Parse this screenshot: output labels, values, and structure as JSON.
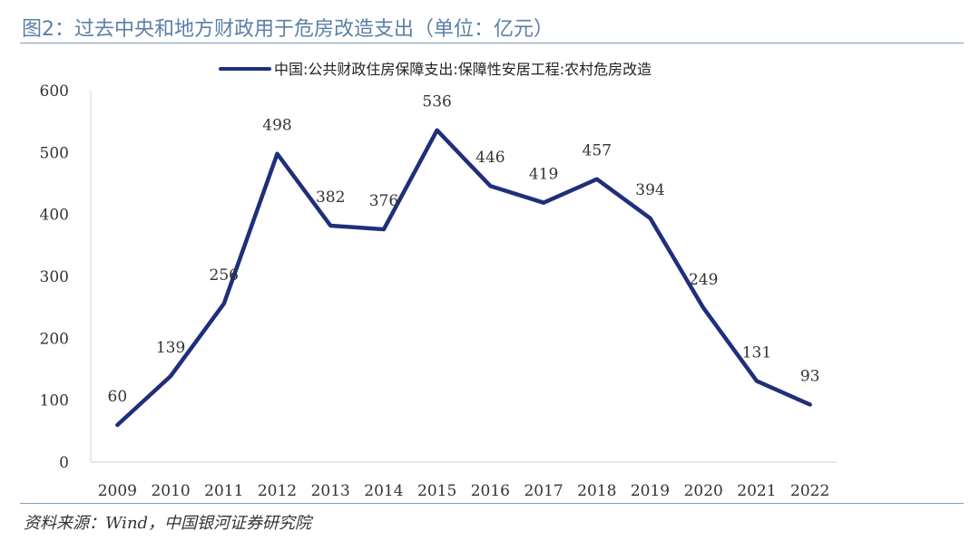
{
  "figure": {
    "title": "图2：过去中央和地方财政用于危房改造支出（单位：亿元）",
    "source": "资料来源：Wind，中国银河证券研究院"
  },
  "chart_data": {
    "type": "line",
    "title": "",
    "xlabel": "",
    "ylabel": "",
    "categories": [
      "2009",
      "2010",
      "2011",
      "2012",
      "2013",
      "2014",
      "2015",
      "2016",
      "2017",
      "2018",
      "2019",
      "2020",
      "2021",
      "2022"
    ],
    "series": [
      {
        "name": "中国:公共财政住房保障支出:保障性安居工程:农村危房改造",
        "values": [
          60,
          139,
          256,
          498,
          382,
          376,
          536,
          446,
          419,
          457,
          394,
          249,
          131,
          93
        ],
        "color": "#1f2f7a"
      }
    ],
    "ylim": [
      0,
      600
    ],
    "yticks": [
      0,
      100,
      200,
      300,
      400,
      500,
      600
    ],
    "grid": false,
    "legend": "top",
    "data_labels": true
  }
}
